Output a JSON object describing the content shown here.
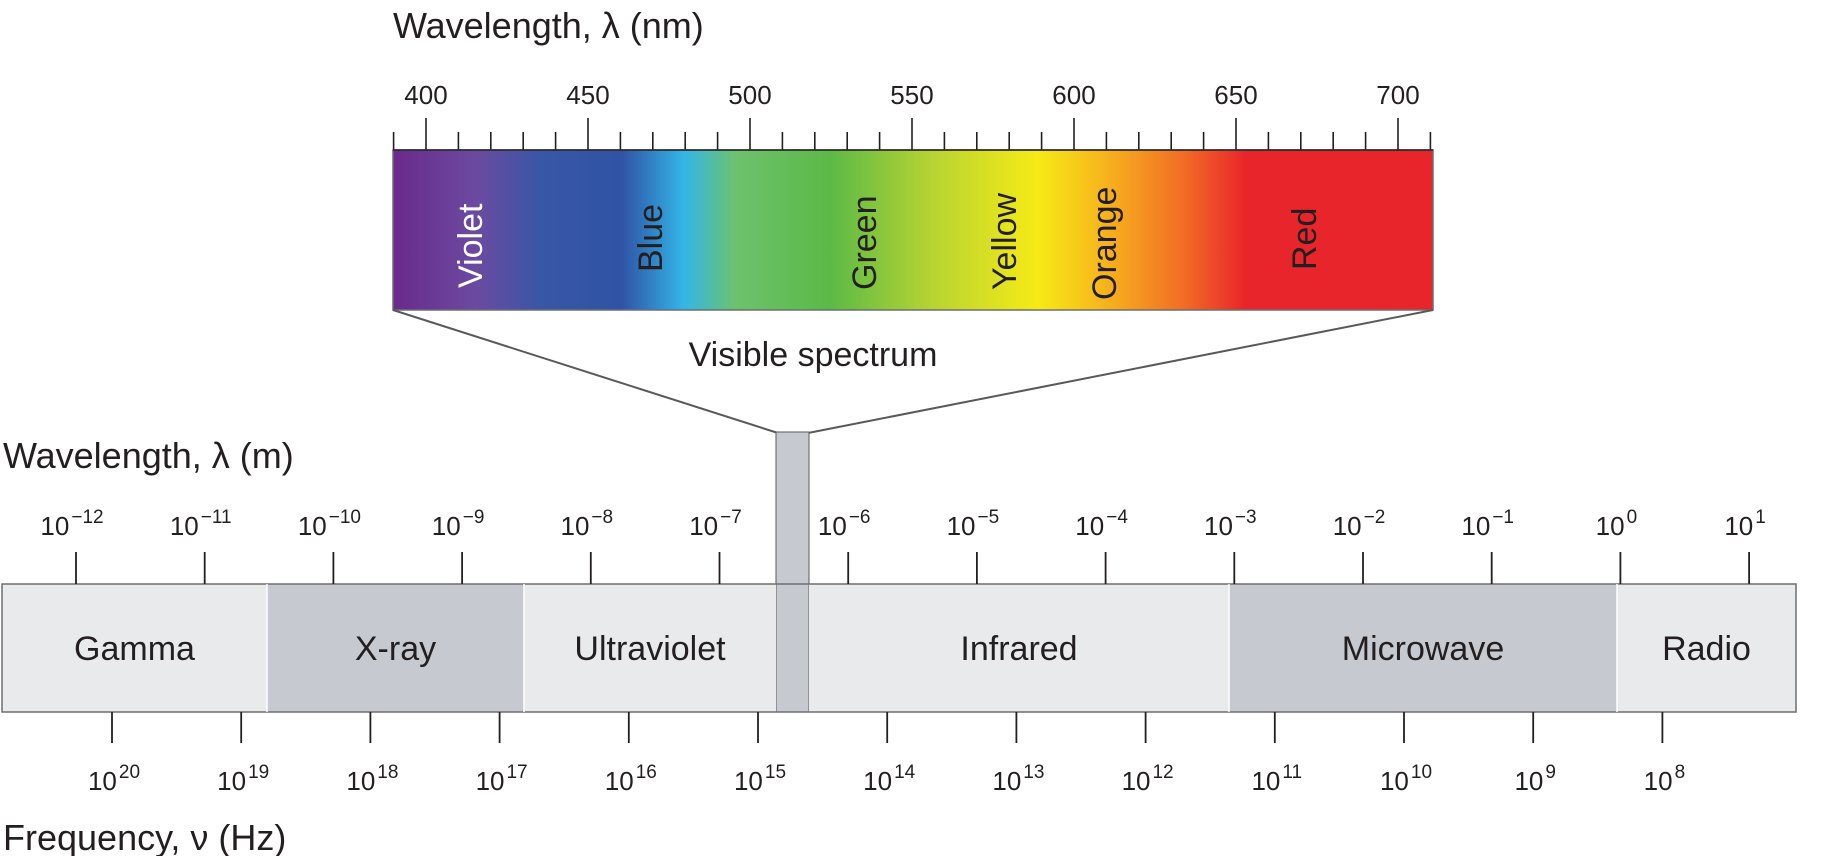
{
  "visible_axis": {
    "title": "Wavelength, λ (nm)",
    "ticks": [
      "400",
      "450",
      "500",
      "550",
      "600",
      "650",
      "700"
    ]
  },
  "visible_spectrum": {
    "label": "Visible spectrum",
    "colors": [
      {
        "name": "Violet",
        "hex": "#6b2f8f"
      },
      {
        "name": "Blue",
        "hex": "#2f53a5"
      },
      {
        "name": "Green",
        "hex": "#5cb946"
      },
      {
        "name": "Yellow",
        "hex": "#f4e91b"
      },
      {
        "name": "Orange",
        "hex": "#f5a21f"
      },
      {
        "name": "Red",
        "hex": "#e8252a"
      }
    ]
  },
  "wavelength_axis": {
    "title": "Wavelength, λ (m)",
    "ticks": [
      {
        "base": "10",
        "exp": "−12"
      },
      {
        "base": "10",
        "exp": "−11"
      },
      {
        "base": "10",
        "exp": "−10"
      },
      {
        "base": "10",
        "exp": "−9"
      },
      {
        "base": "10",
        "exp": "−8"
      },
      {
        "base": "10",
        "exp": "−7"
      },
      {
        "base": "10",
        "exp": "−6"
      },
      {
        "base": "10",
        "exp": "−5"
      },
      {
        "base": "10",
        "exp": "−4"
      },
      {
        "base": "10",
        "exp": "−3"
      },
      {
        "base": "10",
        "exp": "−2"
      },
      {
        "base": "10",
        "exp": "−1"
      },
      {
        "base": "10",
        "exp": "0"
      },
      {
        "base": "10",
        "exp": "1"
      }
    ]
  },
  "bands": [
    {
      "name": "Gamma",
      "color": "#e9eaec"
    },
    {
      "name": "X-ray",
      "color": "#c6cad0"
    },
    {
      "name": "Ultraviolet",
      "color": "#e9eaec"
    },
    {
      "name": "Infrared",
      "color": "#e9eaec"
    },
    {
      "name": "Microwave",
      "color": "#c6cad0"
    },
    {
      "name": "Radio",
      "color": "#e9eaec"
    }
  ],
  "frequency_axis": {
    "title": "Frequency, ν (Hz)",
    "ticks": [
      {
        "base": "10",
        "exp": "20"
      },
      {
        "base": "10",
        "exp": "19"
      },
      {
        "base": "10",
        "exp": "18"
      },
      {
        "base": "10",
        "exp": "17"
      },
      {
        "base": "10",
        "exp": "16"
      },
      {
        "base": "10",
        "exp": "15"
      },
      {
        "base": "10",
        "exp": "14"
      },
      {
        "base": "10",
        "exp": "13"
      },
      {
        "base": "10",
        "exp": "12"
      },
      {
        "base": "10",
        "exp": "11"
      },
      {
        "base": "10",
        "exp": "10"
      },
      {
        "base": "10",
        "exp": "9"
      },
      {
        "base": "10",
        "exp": "8"
      }
    ]
  }
}
